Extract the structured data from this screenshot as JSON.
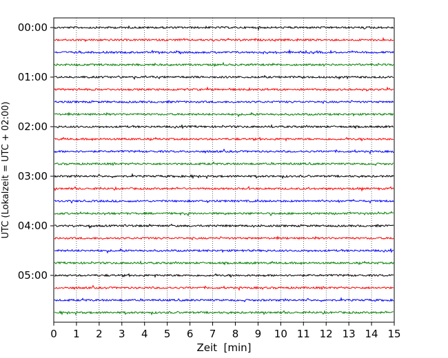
{
  "chart_data": {
    "type": "line",
    "title": "",
    "xlabel": "Zeit  [min]",
    "ylabel": "UTC (Lokalzeit = UTC + 02:00)",
    "xlim": [
      0,
      15
    ],
    "x_ticks": [
      "0",
      "1",
      "2",
      "3",
      "4",
      "5",
      "6",
      "7",
      "8",
      "9",
      "10",
      "11",
      "12",
      "13",
      "14",
      "15"
    ],
    "y_ticks": [
      "00:00",
      "01:00",
      "02:00",
      "03:00",
      "04:00",
      "05:00"
    ],
    "trace_interval_minutes": 15,
    "trace_colors": [
      "#000000",
      "#ff0000",
      "#0000ff",
      "#008000"
    ],
    "grid": "vertical dotted lines at each minute",
    "series": [
      {
        "start": "00:00",
        "color": "#000000"
      },
      {
        "start": "00:15",
        "color": "#ff0000"
      },
      {
        "start": "00:30",
        "color": "#0000ff"
      },
      {
        "start": "00:45",
        "color": "#008000"
      },
      {
        "start": "01:00",
        "color": "#000000"
      },
      {
        "start": "01:15",
        "color": "#ff0000"
      },
      {
        "start": "01:30",
        "color": "#0000ff"
      },
      {
        "start": "01:45",
        "color": "#008000"
      },
      {
        "start": "02:00",
        "color": "#000000"
      },
      {
        "start": "02:15",
        "color": "#ff0000"
      },
      {
        "start": "02:30",
        "color": "#0000ff"
      },
      {
        "start": "02:45",
        "color": "#008000"
      },
      {
        "start": "03:00",
        "color": "#000000"
      },
      {
        "start": "03:15",
        "color": "#ff0000"
      },
      {
        "start": "03:30",
        "color": "#0000ff"
      },
      {
        "start": "03:45",
        "color": "#008000"
      },
      {
        "start": "04:00",
        "color": "#000000"
      },
      {
        "start": "04:15",
        "color": "#ff0000"
      },
      {
        "start": "04:30",
        "color": "#0000ff"
      },
      {
        "start": "04:45",
        "color": "#008000"
      },
      {
        "start": "05:00",
        "color": "#000000"
      },
      {
        "start": "05:15",
        "color": "#ff0000"
      },
      {
        "start": "05:30",
        "color": "#0000ff"
      },
      {
        "start": "05:45",
        "color": "#008000"
      }
    ]
  }
}
